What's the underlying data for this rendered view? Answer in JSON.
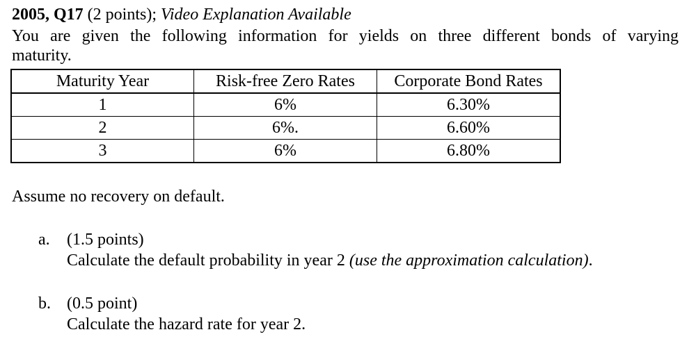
{
  "header": {
    "question_id": "2005, Q17",
    "points": " (2 points); ",
    "video_note": "Video Explanation Available"
  },
  "intro": {
    "line1": "You are given the following information for yields on three different bonds of varying",
    "line2": "maturity."
  },
  "table": {
    "headers": [
      "Maturity Year",
      "Risk-free Zero Rates",
      "Corporate Bond Rates"
    ],
    "rows": [
      [
        "1",
        "6%",
        "6.30%"
      ],
      [
        "2",
        "6%.",
        "6.60%"
      ],
      [
        "3",
        "6%",
        "6.80%"
      ]
    ]
  },
  "note": "Assume no recovery on default.",
  "parts": [
    {
      "marker": "a.",
      "points": "(1.5 points)",
      "text": "Calculate the default probability in year 2 ",
      "emphasis": "(use the approximation calculation)",
      "suffix": "."
    },
    {
      "marker": "b.",
      "points": "(0.5 point)",
      "text": "Calculate the hazard rate for year 2.",
      "emphasis": "",
      "suffix": ""
    }
  ]
}
